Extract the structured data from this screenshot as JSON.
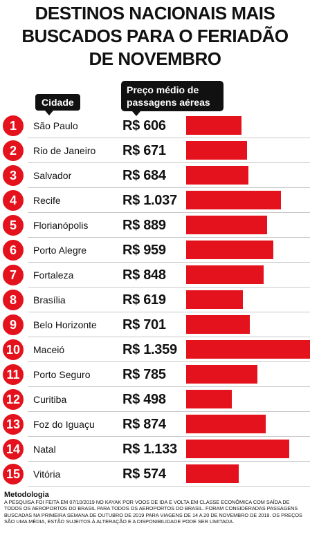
{
  "title_lines": [
    "DESTINOS NACIONAIS MAIS",
    "BUSCADOS PARA O FERIADÃO",
    "DE NOVEMBRO"
  ],
  "header_city": "Cidade",
  "header_price_lines": [
    "Preço médio de",
    "passagens aéreas"
  ],
  "accent_color": "#e4121c",
  "chart_data": {
    "type": "bar",
    "orientation": "horizontal",
    "title": "DESTINOS NACIONAIS MAIS BUSCADOS PARA O FERIADÃO DE NOVEMBRO",
    "ranks": [
      "1",
      "2",
      "3",
      "4",
      "5",
      "6",
      "7",
      "8",
      "9",
      "10",
      "11",
      "12",
      "13",
      "14",
      "15"
    ],
    "categories": [
      "São Paulo",
      "Rio de Janeiro",
      "Salvador",
      "Recife",
      "Florianópolis",
      "Porto Alegre",
      "Fortaleza",
      "Brasília",
      "Belo Horizonte",
      "Maceió",
      "Porto Seguro",
      "Curitiba",
      "Foz do Iguaçu",
      "Natal",
      "Vitória"
    ],
    "values": [
      606,
      671,
      684,
      1037,
      889,
      959,
      848,
      619,
      701,
      1359,
      785,
      498,
      874,
      1133,
      574
    ],
    "value_labels": [
      "R$ 606",
      "R$ 671",
      "R$ 684",
      "R$ 1.037",
      "R$ 889",
      "R$ 959",
      "R$ 848",
      "R$ 619",
      "R$ 701",
      "R$ 1.359",
      "R$ 785",
      "R$ 498",
      "R$ 874",
      "R$ 1.133",
      "R$ 574"
    ],
    "xlim": [
      0,
      1359
    ]
  },
  "methodology": {
    "title": "Metodologia",
    "text": "A pesquisa foi feita em 07/10/2019 no Kayak por voos de ida e volta em classe econômica com saída de todos os aeroportos do Brasil para todos os aeroportos do Brasil. Foram consideradas passagens buscadas na primeira semana de outubro de 2019 para viagens de 14 a 20 de novembro de 2019. Os preços são uma média, estão sujeitos à alteração e a disponibilidade pode ser limitada."
  }
}
